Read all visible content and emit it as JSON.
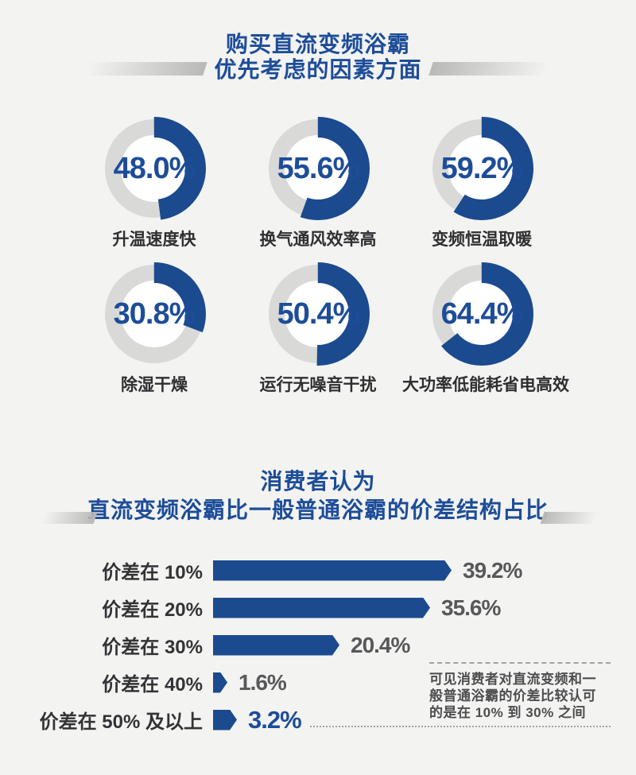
{
  "colors": {
    "background": "#f3f3f1",
    "accent_blue": "#1b4a8f",
    "title_blue": "#1d4d99",
    "donut_track_gray": "#d9d9d7",
    "value_gray": "#58585a"
  },
  "section1": {
    "title_line1": "购买直流变频浴霸",
    "title_line2": "优先考虑的因素方面",
    "donuts": [
      {
        "value": 48.0,
        "display": "48.0%",
        "label": "升温速度快"
      },
      {
        "value": 55.6,
        "display": "55.6%",
        "label": "换气通风效率高"
      },
      {
        "value": 59.2,
        "display": "59.2%",
        "label": "变频恒温取暖"
      },
      {
        "value": 30.8,
        "display": "30.8%",
        "label": "除湿干燥"
      },
      {
        "value": 50.4,
        "display": "50.4%",
        "label": "运行无噪音干扰"
      },
      {
        "value": 64.4,
        "display": "64.4%",
        "label": "大功率低能耗省电高效"
      }
    ]
  },
  "section2": {
    "title_line1": "消费者认为",
    "title_line2": "直流变频浴霸比一般普通浴霸的价差结构占比",
    "bars": [
      {
        "label": "价差在 10%",
        "value": 39.2,
        "display": "39.2%"
      },
      {
        "label": "价差在 20%",
        "value": 35.6,
        "display": "35.6%"
      },
      {
        "label": "价差在 30%",
        "value": 20.4,
        "display": "20.4%"
      },
      {
        "label": "价差在 40%",
        "value": 1.6,
        "display": "1.6%"
      },
      {
        "label": "价差在 50% 及以上",
        "value": 3.2,
        "display": "3.2%"
      }
    ],
    "note_lines": [
      "可见消费者对直流变频和一",
      "般普通浴霸的价差比较认可",
      "的是在 10% 到 30% 之间"
    ]
  },
  "chart_data": [
    {
      "type": "pie",
      "variant": "donut-set",
      "title": "购买直流变频浴霸 优先考虑的因素方面",
      "unit": "%",
      "items": [
        {
          "label": "升温速度快",
          "value": 48.0
        },
        {
          "label": "换气通风效率高",
          "value": 55.6
        },
        {
          "label": "变频恒温取暖",
          "value": 59.2
        },
        {
          "label": "除湿干燥",
          "value": 30.8
        },
        {
          "label": "运行无噪音干扰",
          "value": 50.4
        },
        {
          "label": "大功率低能耗省电高效",
          "value": 64.4
        }
      ],
      "layout": {
        "start_angle": "12-o-clock",
        "direction": "clockwise",
        "fill_color": "#1b4a8f",
        "track_color": "#d9d9d7"
      }
    },
    {
      "type": "bar",
      "orientation": "horizontal",
      "title": "消费者认为 直流变频浴霸比一般普通浴霸的价差结构占比",
      "categories": [
        "价差在 10%",
        "价差在 20%",
        "价差在 30%",
        "价差在 40%",
        "价差在 50% 及以上"
      ],
      "values": [
        39.2,
        35.6,
        20.4,
        1.6,
        3.2
      ],
      "unit": "%",
      "xlim": [
        0,
        40
      ],
      "grid": false,
      "bar_color": "#1b4a8f",
      "annotation": "可见消费者对直流变频和一般普通浴霸的价差比较认可的是在 10% 到 30% 之间"
    }
  ]
}
